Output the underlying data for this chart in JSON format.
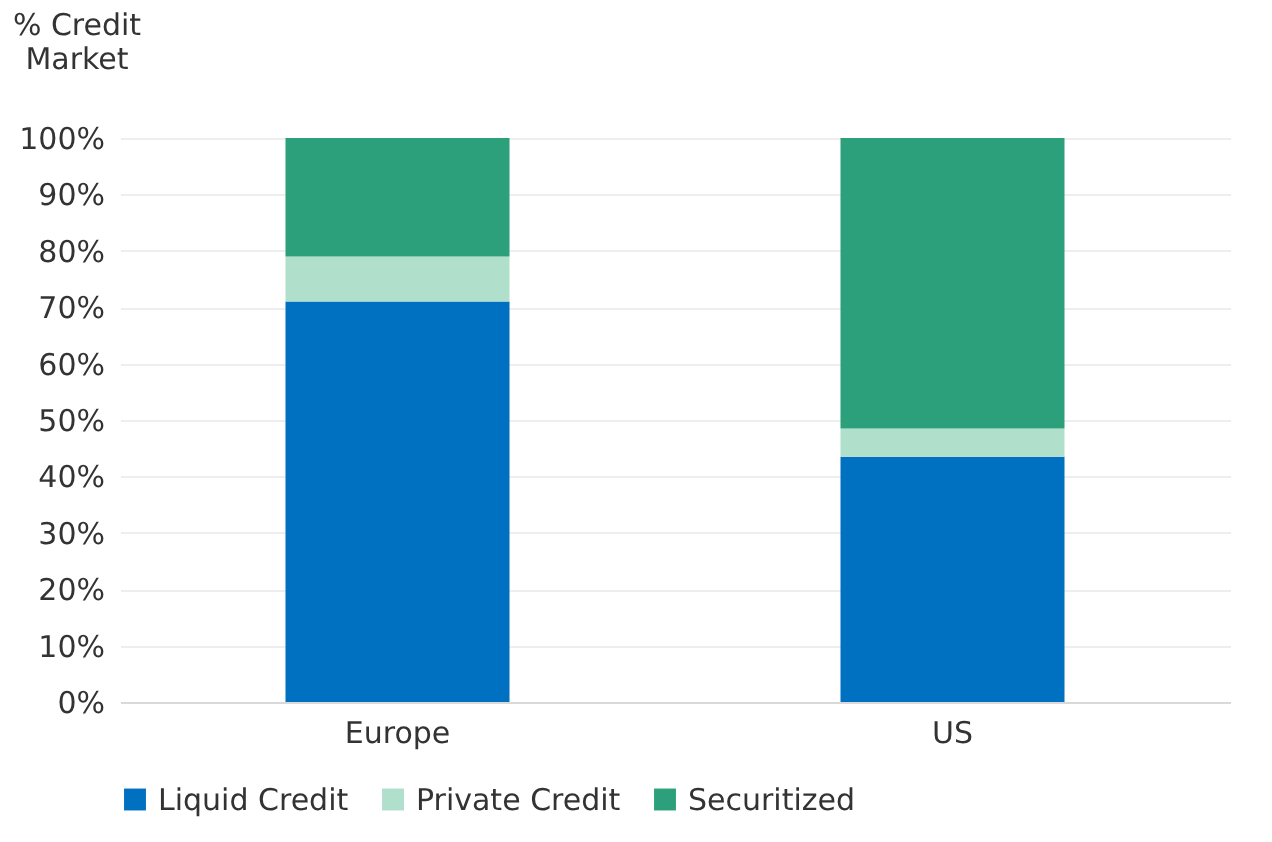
{
  "chart_data": {
    "type": "bar",
    "stacked": true,
    "ylabel": "% Credit Market",
    "categories": [
      "Europe",
      "US"
    ],
    "series": [
      {
        "name": "Liquid Credit",
        "color": "#0070c0",
        "values": [
          71,
          43.5
        ]
      },
      {
        "name": "Private Credit",
        "color": "#b0dfcc",
        "values": [
          8,
          5
        ]
      },
      {
        "name": "Securitized",
        "color": "#2ca07a",
        "values": [
          21,
          51.5
        ]
      }
    ],
    "ylim": [
      0,
      100
    ],
    "yticks": [
      {
        "value": 0,
        "label": "0%"
      },
      {
        "value": 10,
        "label": "10%"
      },
      {
        "value": 20,
        "label": "20%"
      },
      {
        "value": 30,
        "label": "30%"
      },
      {
        "value": 40,
        "label": "40%"
      },
      {
        "value": 50,
        "label": "50%"
      },
      {
        "value": 60,
        "label": "60%"
      },
      {
        "value": 70,
        "label": "70%"
      },
      {
        "value": 80,
        "label": "80%"
      },
      {
        "value": 90,
        "label": "90%"
      },
      {
        "value": 100,
        "label": "100%"
      }
    ],
    "grid": "y",
    "legend": "bottom"
  }
}
